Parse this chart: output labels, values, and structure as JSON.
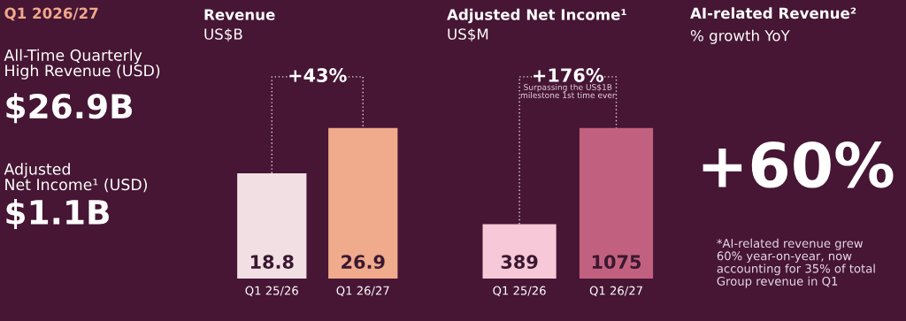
{
  "chart_data": [
    {
      "type": "other",
      "title": "Q1 2026/27",
      "annotations": [
        "All-Time Quarterly\nHigh Revenue (USD)",
        "$26.9B",
        "Adjusted\nNet Income¹ (USD)",
        "$1.1B"
      ]
    },
    {
      "type": "bar",
      "title": "Revenue",
      "subtitle": "US$B",
      "categories": [
        "Q1 25/26",
        "Q1 26/27"
      ],
      "values": [
        18.8,
        26.9
      ],
      "colors": [
        "#f1dfe4",
        "#f0aa8c"
      ],
      "data_labels": true,
      "tick_labels": "x",
      "annotations": [
        "+43%"
      ]
    },
    {
      "type": "bar",
      "title": "Adjusted Net Income¹",
      "subtitle": "US$M",
      "categories": [
        "Q1 25/26",
        "Q1 26/27"
      ],
      "values": [
        389,
        1075
      ],
      "colors": [
        "#f6c8d8",
        "#c2617f"
      ],
      "data_labels": true,
      "tick_labels": "x",
      "annotations": [
        "+176%",
        "Surpassing the US$1B\nmilestone 1st time ever"
      ]
    },
    {
      "type": "other",
      "title": "AI-related Revenue²",
      "subtitle": "% growth YoY",
      "annotations": [
        "+60%",
        "*AI-related revenue grew\n60% year-on-year, now\naccounting for 35% of total\nGroup revenue in Q1"
      ]
    }
  ]
}
